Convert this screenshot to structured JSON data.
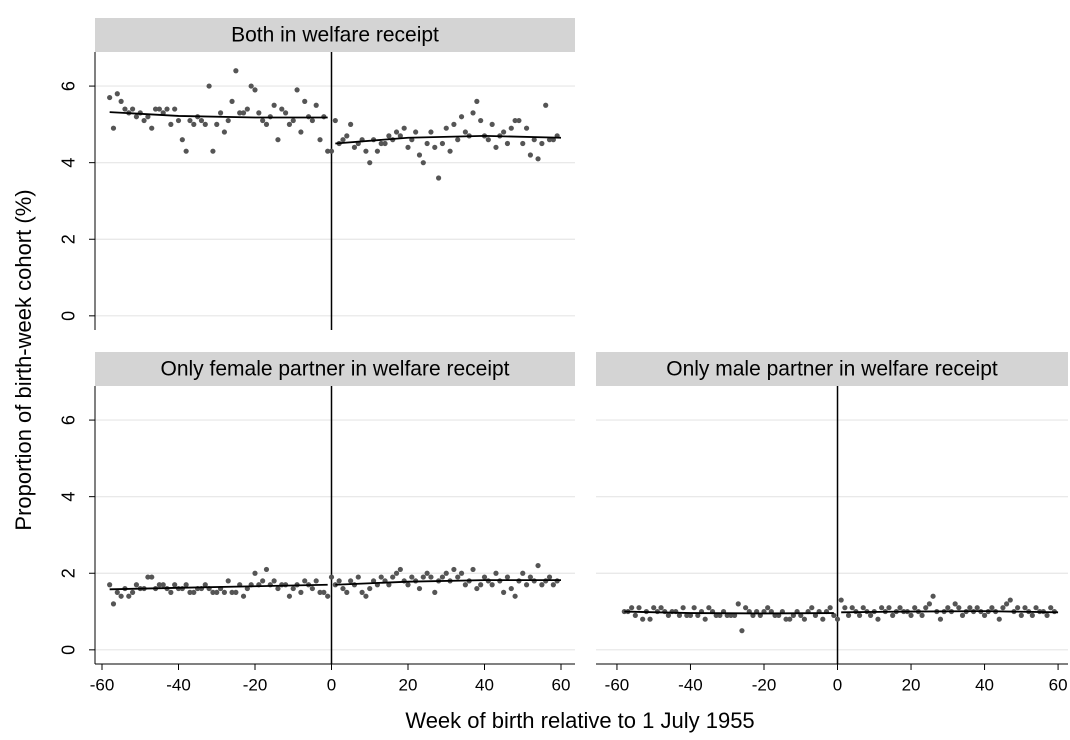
{
  "axis_labels": {
    "y": "Proportion of birth-week cohort (%)",
    "x": "Week of birth relative to 1 July 1955"
  },
  "chart_data": [
    {
      "type": "scatter",
      "title": "Both in welfare receipt",
      "x": [
        -58,
        -57,
        -56,
        -55,
        -54,
        -53,
        -52,
        -51,
        -50,
        -49,
        -48,
        -47,
        -46,
        -45,
        -44,
        -43,
        -42,
        -41,
        -40,
        -39,
        -38,
        -37,
        -36,
        -35,
        -34,
        -33,
        -32,
        -31,
        -30,
        -29,
        -28,
        -27,
        -26,
        -25,
        -24,
        -23,
        -22,
        -21,
        -20,
        -19,
        -18,
        -17,
        -16,
        -15,
        -14,
        -13,
        -12,
        -11,
        -10,
        -9,
        -8,
        -7,
        -6,
        -5,
        -4,
        -3,
        -2,
        -1,
        0,
        1,
        2,
        3,
        4,
        5,
        6,
        7,
        8,
        9,
        10,
        11,
        12,
        13,
        14,
        15,
        16,
        17,
        18,
        19,
        20,
        21,
        22,
        23,
        24,
        25,
        26,
        27,
        28,
        29,
        30,
        31,
        32,
        33,
        34,
        35,
        36,
        37,
        38,
        39,
        40,
        41,
        42,
        43,
        44,
        45,
        46,
        47,
        48,
        49,
        50,
        51,
        52,
        53,
        54,
        55,
        56,
        57,
        58,
        59
      ],
      "values": [
        5.7,
        4.9,
        5.8,
        5.6,
        5.4,
        5.3,
        5.4,
        5.2,
        5.3,
        5.1,
        5.2,
        4.9,
        5.4,
        5.4,
        5.3,
        5.4,
        5.0,
        5.4,
        5.1,
        4.6,
        4.3,
        5.1,
        5.0,
        5.2,
        5.1,
        5.0,
        6.0,
        4.3,
        5.0,
        5.3,
        4.8,
        5.1,
        5.6,
        6.4,
        5.3,
        5.3,
        5.4,
        6.0,
        5.9,
        5.3,
        5.1,
        5.0,
        5.2,
        5.5,
        4.6,
        5.4,
        5.3,
        5.0,
        5.1,
        5.9,
        4.8,
        5.6,
        5.2,
        5.1,
        5.5,
        4.6,
        5.2,
        4.3,
        4.3,
        5.1,
        4.5,
        4.6,
        4.7,
        5.0,
        4.4,
        4.5,
        4.6,
        4.3,
        4.0,
        4.6,
        4.3,
        4.5,
        4.5,
        4.7,
        4.6,
        4.8,
        4.7,
        4.9,
        4.4,
        4.6,
        4.8,
        4.2,
        4.0,
        4.5,
        4.8,
        4.4,
        3.6,
        4.5,
        4.9,
        4.3,
        5.0,
        4.6,
        5.2,
        4.8,
        4.7,
        5.3,
        5.6,
        5.1,
        4.7,
        4.6,
        5.0,
        4.4,
        4.7,
        4.8,
        4.5,
        4.9,
        5.1,
        5.1,
        4.5,
        4.9,
        4.2,
        4.6,
        4.1,
        4.5,
        5.5,
        4.6,
        4.6,
        4.7
      ],
      "fit": {
        "x": [
          -58,
          -40,
          -20,
          -1,
          0,
          1,
          20,
          40,
          60
        ],
        "values": [
          5.32,
          5.22,
          5.18,
          5.18,
          null,
          4.5,
          4.65,
          4.7,
          4.65
        ]
      },
      "cutoff": 0,
      "xlim": [
        -61.83,
        63.66
      ],
      "ylim": [
        -0.37,
        6.89
      ],
      "yticks": [
        0,
        2,
        4,
        6
      ],
      "ytick_labels": true,
      "color": "#555555"
    },
    {
      "type": "scatter",
      "title": "Only female partner in welfare receipt",
      "x": [
        -58,
        -57,
        -56,
        -55,
        -54,
        -53,
        -52,
        -51,
        -50,
        -49,
        -48,
        -47,
        -46,
        -45,
        -44,
        -43,
        -42,
        -41,
        -40,
        -39,
        -38,
        -37,
        -36,
        -35,
        -34,
        -33,
        -32,
        -31,
        -30,
        -29,
        -28,
        -27,
        -26,
        -25,
        -24,
        -23,
        -22,
        -21,
        -20,
        -19,
        -18,
        -17,
        -16,
        -15,
        -14,
        -13,
        -12,
        -11,
        -10,
        -9,
        -8,
        -7,
        -6,
        -5,
        -4,
        -3,
        -2,
        -1,
        0,
        1,
        2,
        3,
        4,
        5,
        6,
        7,
        8,
        9,
        10,
        11,
        12,
        13,
        14,
        15,
        16,
        17,
        18,
        19,
        20,
        21,
        22,
        23,
        24,
        25,
        26,
        27,
        28,
        29,
        30,
        31,
        32,
        33,
        34,
        35,
        36,
        37,
        38,
        39,
        40,
        41,
        42,
        43,
        44,
        45,
        46,
        47,
        48,
        49,
        50,
        51,
        52,
        53,
        54,
        55,
        56,
        57,
        58,
        59
      ],
      "values": [
        1.7,
        1.2,
        1.5,
        1.4,
        1.6,
        1.4,
        1.5,
        1.7,
        1.6,
        1.6,
        1.9,
        1.9,
        1.6,
        1.7,
        1.7,
        1.6,
        1.5,
        1.7,
        1.6,
        1.6,
        1.7,
        1.5,
        1.5,
        1.6,
        1.6,
        1.7,
        1.6,
        1.5,
        1.5,
        1.6,
        1.5,
        1.8,
        1.5,
        1.5,
        1.7,
        1.4,
        1.6,
        1.7,
        2.0,
        1.7,
        1.8,
        2.1,
        1.7,
        1.8,
        1.6,
        1.7,
        1.7,
        1.4,
        1.6,
        1.7,
        1.5,
        1.8,
        1.7,
        1.6,
        1.8,
        1.5,
        1.5,
        1.4,
        1.9,
        1.7,
        1.8,
        1.6,
        1.5,
        1.8,
        1.7,
        1.9,
        1.5,
        1.4,
        1.6,
        1.8,
        1.7,
        1.9,
        1.8,
        1.7,
        1.9,
        2.0,
        2.1,
        1.8,
        1.7,
        1.9,
        1.8,
        1.6,
        1.9,
        2.0,
        1.9,
        1.5,
        1.8,
        1.9,
        2.0,
        1.8,
        2.1,
        1.9,
        2.0,
        1.7,
        1.8,
        2.1,
        1.6,
        1.7,
        1.9,
        1.8,
        1.7,
        2.0,
        1.8,
        1.5,
        1.9,
        1.6,
        1.4,
        1.8,
        2.0,
        1.7,
        1.9,
        1.8,
        2.2,
        1.7,
        1.8,
        1.9,
        1.7,
        1.8
      ],
      "fit": {
        "x": [
          -58,
          -40,
          -20,
          -1,
          0,
          1,
          20,
          40,
          60
        ],
        "values": [
          1.58,
          1.62,
          1.66,
          1.7,
          null,
          1.7,
          1.78,
          1.82,
          1.82
        ]
      },
      "cutoff": 0,
      "xlim": [
        -61.83,
        63.66
      ],
      "xticks": [
        -60,
        -40,
        -20,
        0,
        20,
        40,
        60
      ],
      "ylim": [
        -0.37,
        6.89
      ],
      "yticks": [
        0,
        2,
        4,
        6
      ],
      "ytick_labels": true,
      "color": "#555555"
    },
    {
      "type": "scatter",
      "title": "Only male partner in welfare receipt",
      "x": [
        -58,
        -57,
        -56,
        -55,
        -54,
        -53,
        -52,
        -51,
        -50,
        -49,
        -48,
        -47,
        -46,
        -45,
        -44,
        -43,
        -42,
        -41,
        -40,
        -39,
        -38,
        -37,
        -36,
        -35,
        -34,
        -33,
        -32,
        -31,
        -30,
        -29,
        -28,
        -27,
        -26,
        -25,
        -24,
        -23,
        -22,
        -21,
        -20,
        -19,
        -18,
        -17,
        -16,
        -15,
        -14,
        -13,
        -12,
        -11,
        -10,
        -9,
        -8,
        -7,
        -6,
        -5,
        -4,
        -3,
        -2,
        -1,
        0,
        1,
        2,
        3,
        4,
        5,
        6,
        7,
        8,
        9,
        10,
        11,
        12,
        13,
        14,
        15,
        16,
        17,
        18,
        19,
        20,
        21,
        22,
        23,
        24,
        25,
        26,
        27,
        28,
        29,
        30,
        31,
        32,
        33,
        34,
        35,
        36,
        37,
        38,
        39,
        40,
        41,
        42,
        43,
        44,
        45,
        46,
        47,
        48,
        49,
        50,
        51,
        52,
        53,
        54,
        55,
        56,
        57,
        58,
        59
      ],
      "values": [
        1.0,
        1.0,
        1.1,
        0.9,
        1.1,
        0.8,
        1.0,
        0.8,
        1.1,
        1.0,
        1.1,
        1.0,
        0.9,
        1.0,
        1.0,
        0.9,
        1.1,
        0.9,
        0.9,
        1.1,
        0.9,
        1.0,
        0.8,
        1.1,
        1.0,
        0.9,
        0.9,
        1.0,
        0.9,
        0.9,
        0.9,
        1.2,
        0.5,
        1.1,
        1.0,
        0.9,
        1.0,
        0.9,
        1.0,
        1.1,
        1.0,
        0.9,
        0.9,
        1.0,
        0.8,
        0.8,
        0.9,
        1.0,
        0.9,
        0.8,
        1.0,
        1.1,
        0.9,
        1.0,
        0.8,
        1.0,
        1.1,
        0.9,
        0.8,
        1.3,
        1.1,
        0.9,
        1.1,
        1.0,
        0.9,
        1.1,
        1.0,
        0.9,
        1.0,
        0.8,
        1.1,
        1.0,
        1.1,
        0.9,
        1.0,
        1.1,
        1.0,
        1.0,
        0.9,
        1.1,
        1.0,
        0.9,
        1.1,
        1.2,
        1.4,
        1.0,
        0.8,
        1.0,
        1.1,
        1.0,
        1.2,
        1.1,
        0.9,
        1.0,
        1.1,
        1.0,
        1.1,
        1.0,
        0.9,
        1.0,
        1.1,
        1.0,
        0.8,
        1.1,
        1.2,
        1.3,
        1.0,
        1.1,
        0.9,
        1.1,
        1.0,
        0.9,
        1.1,
        1.0,
        1.0,
        0.9,
        1.1,
        1.0
      ],
      "fit": {
        "x": [
          -58,
          -40,
          -20,
          -1,
          0,
          1,
          20,
          40,
          60
        ],
        "values": [
          1.0,
          0.96,
          0.95,
          0.96,
          null,
          0.98,
          1.0,
          1.01,
          0.98
        ]
      },
      "cutoff": 0,
      "xlim": [
        -65.7,
        62.7
      ],
      "xticks": [
        -60,
        -40,
        -20,
        0,
        20,
        40,
        60
      ],
      "ylim": [
        -0.37,
        6.89
      ],
      "yticks": [
        0,
        2,
        4,
        6
      ],
      "ytick_labels": false,
      "color": "#555555"
    }
  ]
}
